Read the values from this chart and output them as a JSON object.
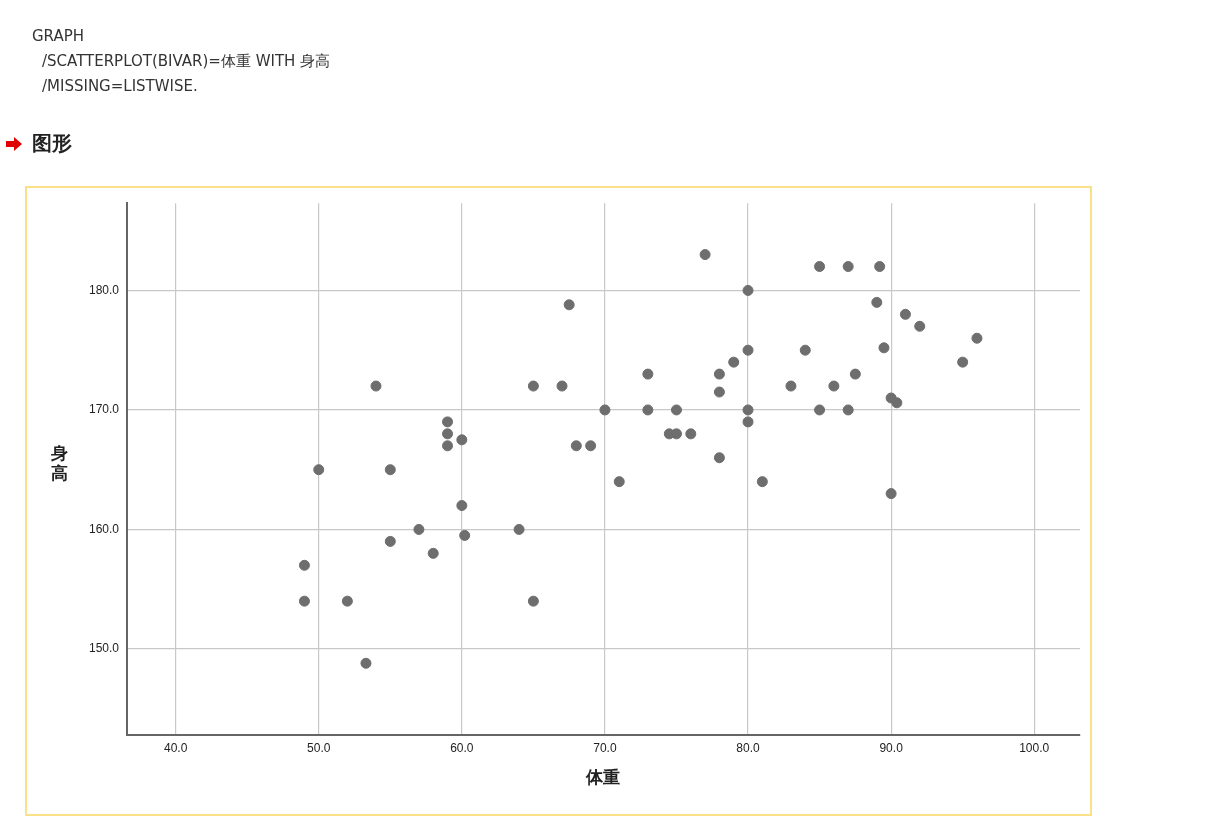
{
  "chart_data": {
    "type": "scatter",
    "title": "图形",
    "annotations": [
      "GRAPH",
      "/SCATTERPLOT(BIVAR)=体重 WITH 身高",
      "/MISSING=LISTWISE."
    ],
    "xlabel": "体重",
    "ylabel": "身高",
    "x": [
      49,
      49,
      50,
      52,
      53.3,
      54,
      55,
      55,
      57,
      58,
      59,
      59,
      59,
      60,
      60,
      60.2,
      64,
      65,
      65,
      67,
      67.5,
      68,
      69,
      70,
      71,
      73,
      73,
      74.5,
      75,
      75,
      76,
      77,
      78,
      78,
      78,
      79,
      80,
      80,
      80,
      80,
      81,
      83,
      84,
      85,
      85,
      86,
      87,
      87,
      87.5,
      89.2,
      89,
      89.5,
      90,
      90.4,
      90,
      91,
      92,
      95,
      96
    ],
    "values": [
      157,
      154,
      165,
      154,
      148.8,
      172,
      165,
      159,
      160,
      158,
      169,
      168,
      167,
      167.5,
      162,
      159.5,
      160,
      172,
      154,
      172,
      178.8,
      167,
      167,
      170,
      164,
      173,
      170,
      168,
      170,
      168,
      168,
      183,
      173,
      171.5,
      166,
      174,
      180,
      175,
      170,
      169,
      164,
      172,
      175,
      182,
      170,
      172,
      182,
      170,
      173,
      182,
      179,
      175.2,
      171,
      170.6,
      163,
      178,
      177,
      174,
      176
    ],
    "color": "#6e6e6e",
    "marker": "circle",
    "xlim": [
      36.6,
      103.2
    ],
    "ylim": [
      142.8,
      187.3
    ],
    "xticks": [
      {
        "value": 40,
        "label": "40.0"
      },
      {
        "value": 50,
        "label": "50.0"
      },
      {
        "value": 60,
        "label": "60.0"
      },
      {
        "value": 70,
        "label": "70.0"
      },
      {
        "value": 80,
        "label": "80.0"
      },
      {
        "value": 90,
        "label": "90.0"
      },
      {
        "value": 100,
        "label": "100.0"
      }
    ],
    "yticks": [
      {
        "value": 150,
        "label": "150.0"
      },
      {
        "value": 160,
        "label": "160.0"
      },
      {
        "value": 170,
        "label": "170.0"
      },
      {
        "value": 180,
        "label": "180.0"
      }
    ],
    "grid": true
  }
}
